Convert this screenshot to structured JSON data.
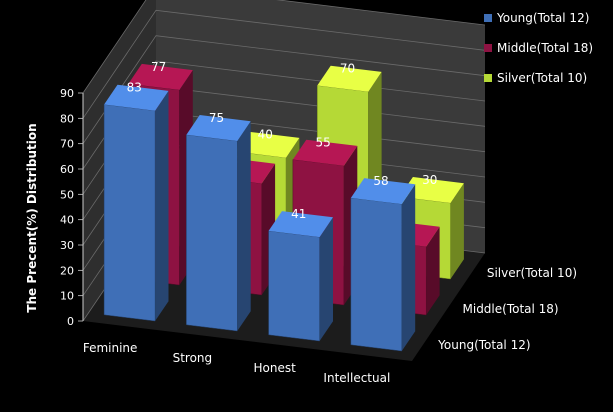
{
  "chart_data": {
    "type": "bar",
    "title": "",
    "xlabel": "",
    "ylabel": "The Precent(%) Distribution",
    "ylim": [
      0,
      90
    ],
    "yticks": [
      0,
      10,
      20,
      30,
      40,
      50,
      60,
      70,
      80,
      90
    ],
    "grid": true,
    "legend": "top-right",
    "categories": [
      "Feminine",
      "Strong",
      "Honest",
      "Intellectual"
    ],
    "series": [
      {
        "name": "Young(Total 12)",
        "color": "#3f6fb7",
        "values": [
          83,
          75,
          41,
          58
        ]
      },
      {
        "name": "Middle(Total 18)",
        "color": "#8e1242",
        "values": [
          77,
          44,
          55,
          27
        ]
      },
      {
        "name": "Silver(Total 10)",
        "color": "#b5d936",
        "values": [
          30,
          40,
          70,
          30
        ]
      }
    ]
  }
}
